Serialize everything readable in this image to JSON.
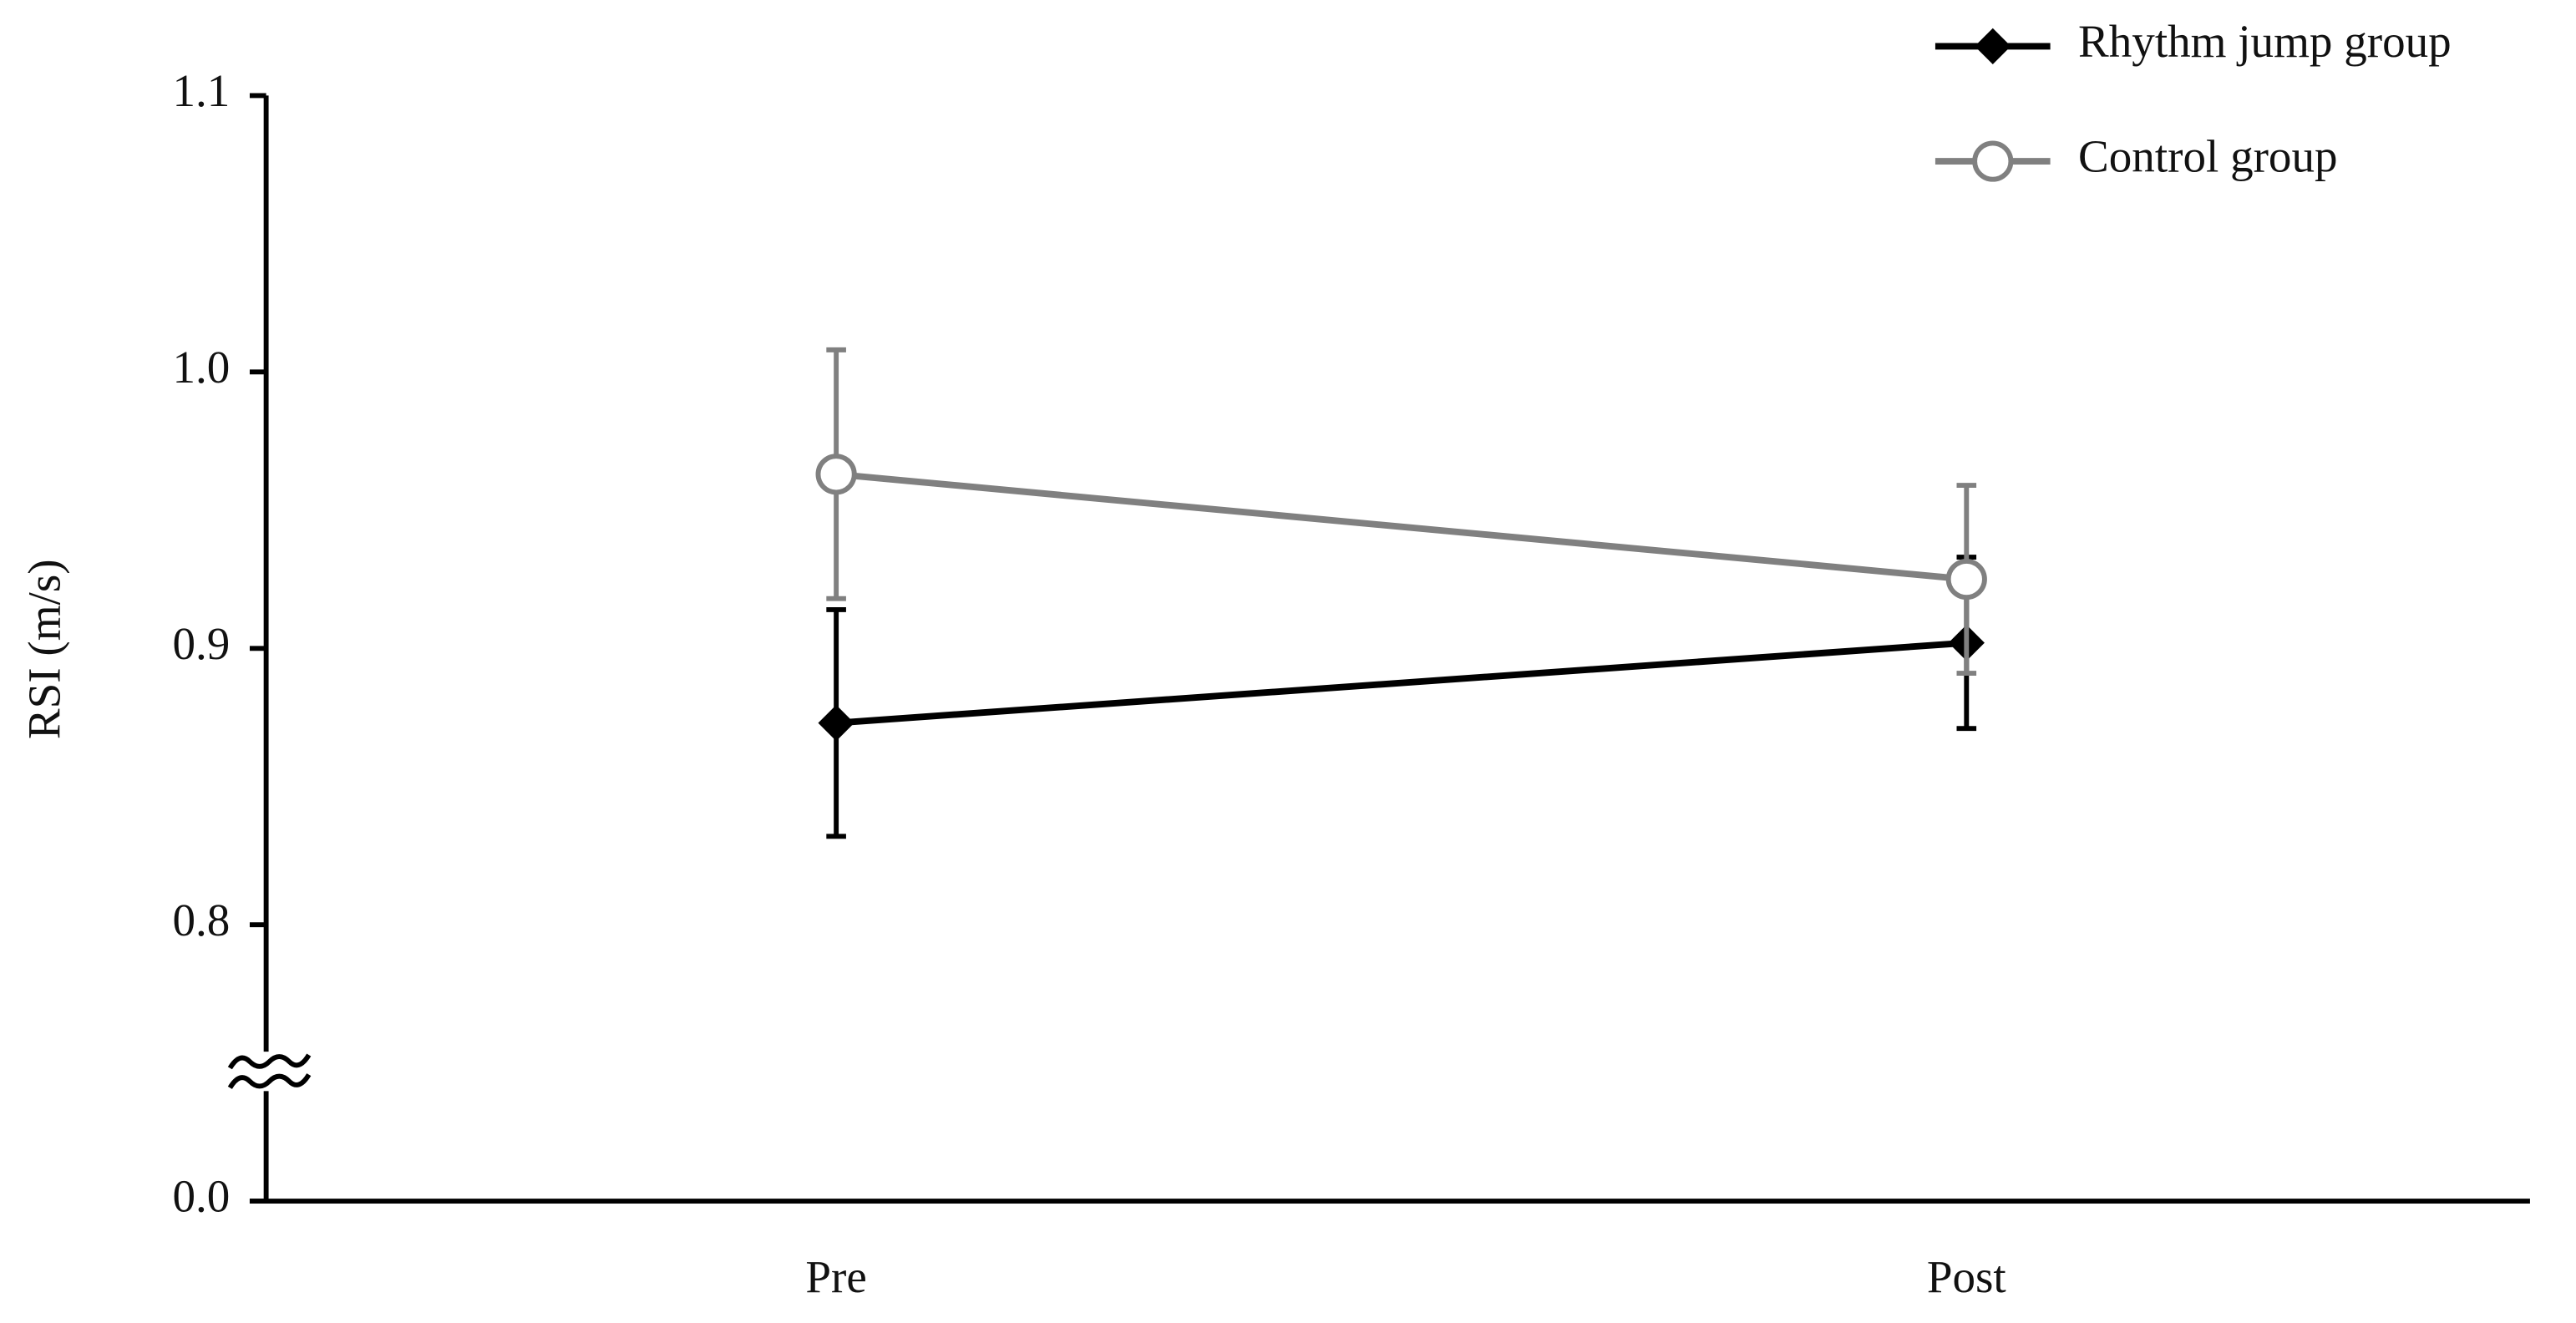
{
  "chart_data": {
    "type": "line",
    "y_label": "RSI (m/s)",
    "categories": [
      "Pre",
      "Post"
    ],
    "series": [
      {
        "name": "Rhythm jump group",
        "color": "#000000",
        "marker": "diamond",
        "values": [
          0.873,
          0.902
        ],
        "errors": [
          0.041,
          0.031
        ]
      },
      {
        "name": "Control group",
        "color": "#808080",
        "marker": "circle",
        "values": [
          0.963,
          0.925
        ],
        "errors": [
          0.045,
          0.034
        ]
      }
    ],
    "ylim": [
      0.7,
      1.1
    ],
    "yticks": [
      {
        "value": 0,
        "label": "0.0"
      },
      0.8,
      0.9,
      {
        "value": 1.0,
        "label": "1.0"
      },
      1.1
    ],
    "axis_break": true,
    "legend": "top-right"
  }
}
